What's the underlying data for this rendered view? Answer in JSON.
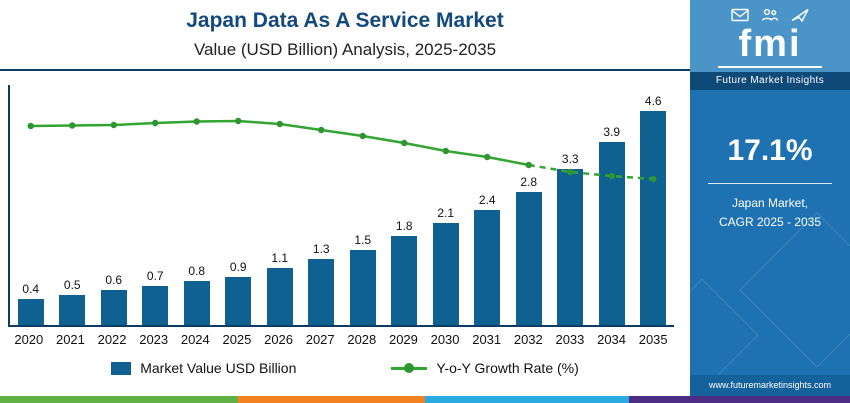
{
  "header": {
    "title": "Japan Data As A Service Market",
    "subtitle": "Value (USD Billion) Analysis, 2025-2035"
  },
  "chart_data": {
    "type": "bar",
    "title": "Japan Data As A Service Market",
    "subtitle": "Value (USD Billion) Analysis, 2025-2035",
    "categories": [
      "2020",
      "2021",
      "2022",
      "2023",
      "2024",
      "2025",
      "2026",
      "2027",
      "2028",
      "2029",
      "2030",
      "2031",
      "2032",
      "2033",
      "2034",
      "2035"
    ],
    "series": [
      {
        "name": "Market Value USD Billion",
        "type": "bar",
        "color": "#0f6191",
        "values": [
          0.4,
          0.5,
          0.6,
          0.7,
          0.8,
          0.9,
          1.1,
          1.3,
          1.5,
          1.8,
          2.1,
          2.4,
          2.8,
          3.3,
          3.9,
          4.6
        ]
      },
      {
        "name": "Y-o-Y Growth Rate (%)",
        "type": "line",
        "color": "#33a532",
        "marker_color": "#2e9630",
        "values_estimated": true,
        "values": [
          25.0,
          25.1,
          25.2,
          25.6,
          25.9,
          26.0,
          25.4,
          24.2,
          23.0,
          21.6,
          20.0,
          18.8,
          17.2,
          15.8,
          15.0,
          14.4
        ],
        "dashed_from_index": 12
      }
    ],
    "xlabel": "",
    "ylabel": "",
    "ylim": [
      0,
      5
    ],
    "grid": false,
    "value_labels_shown": true,
    "legend_position": "bottom"
  },
  "sidebar": {
    "logo": {
      "brand": "fmi",
      "brand_full": "Future Market Insights",
      "icons": [
        "mail-icon",
        "people-icon",
        "plane-icon"
      ]
    },
    "stat_value": "17.1%",
    "stat_label_line1": "Japan Market,",
    "stat_label_line2": "CAGR 2025 - 2035",
    "website": "www.futuremarketinsights.com",
    "colors": {
      "background": "#1e72b2",
      "logo_bg": "#4a94c8",
      "band_bg": "#0d4a78",
      "footer_bg": "#15619c"
    }
  },
  "footer_strip": {
    "colors": [
      "#62b146",
      "#f58220",
      "#29abe2",
      "#4b2e83"
    ]
  }
}
